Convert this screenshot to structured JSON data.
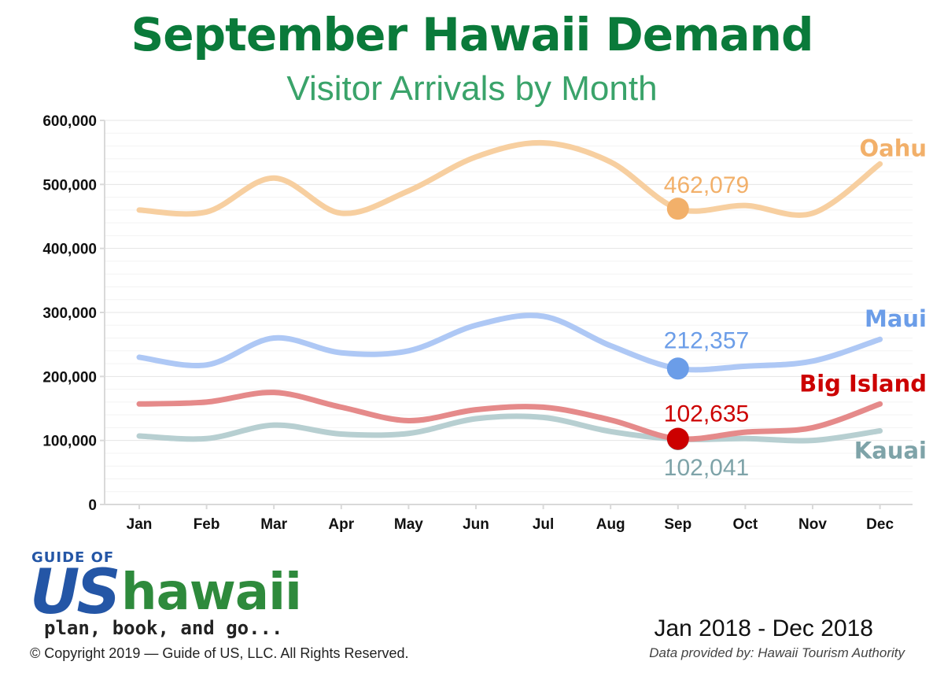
{
  "header": {
    "title": "September Hawaii Demand",
    "subtitle": "Visitor Arrivals by Month"
  },
  "chart_data": {
    "type": "line",
    "title": "September Hawaii Demand",
    "subtitle": "Visitor Arrivals by Month",
    "xlabel": "",
    "ylabel": "",
    "categories": [
      "Jan",
      "Feb",
      "Mar",
      "Apr",
      "May",
      "Jun",
      "Jul",
      "Aug",
      "Sep",
      "Oct",
      "Nov",
      "Dec"
    ],
    "y_ticks": [
      "0",
      "100,000",
      "200,000",
      "300,000",
      "400,000",
      "500,000",
      "600,000"
    ],
    "ylim": [
      0,
      600000
    ],
    "grid": true,
    "series": [
      {
        "name": "Oahu",
        "color": "#f7cfa0",
        "label_color": "#f2b06a",
        "values": [
          460000,
          457000,
          510000,
          455000,
          490000,
          543000,
          565000,
          535000,
          462079,
          467000,
          455000,
          532000
        ],
        "highlight_index": 8,
        "highlight_label": "462,079",
        "highlight_color": "#f2b06a"
      },
      {
        "name": "Maui",
        "color": "#aec8f5",
        "label_color": "#6b9de8",
        "values": [
          230000,
          218000,
          260000,
          237000,
          240000,
          280000,
          294000,
          248000,
          212357,
          216000,
          224000,
          258000
        ],
        "highlight_index": 8,
        "highlight_label": "212,357",
        "highlight_color": "#6b9de8"
      },
      {
        "name": "Big Island",
        "color": "#e58a8a",
        "label_color": "#cc0000",
        "values": [
          157000,
          160000,
          175000,
          152000,
          131000,
          148000,
          152000,
          132000,
          102635,
          113000,
          120000,
          157000
        ],
        "highlight_index": 8,
        "highlight_label": "102,635",
        "highlight_color": "#cc0000"
      },
      {
        "name": "Kauai",
        "color": "#b7cfd1",
        "label_color": "#7ea3a8",
        "values": [
          107000,
          103000,
          124000,
          110000,
          111000,
          134000,
          136000,
          114000,
          102041,
          103000,
          100000,
          115000
        ],
        "highlight_index": 8,
        "highlight_label": "102,041",
        "highlight_color": "#7ea3a8"
      }
    ]
  },
  "footer": {
    "logo_top": "GUIDE OF",
    "logo_us": "US",
    "logo_hawaii": "hawaii",
    "logo_tagline": "plan, book, and go...",
    "copyright": "© Copyright 2019 — Guide of US, LLC. All Rights Reserved.",
    "period": "Jan 2018 - Dec 2018",
    "source": "Data provided by: Hawaii Tourism Authority"
  }
}
